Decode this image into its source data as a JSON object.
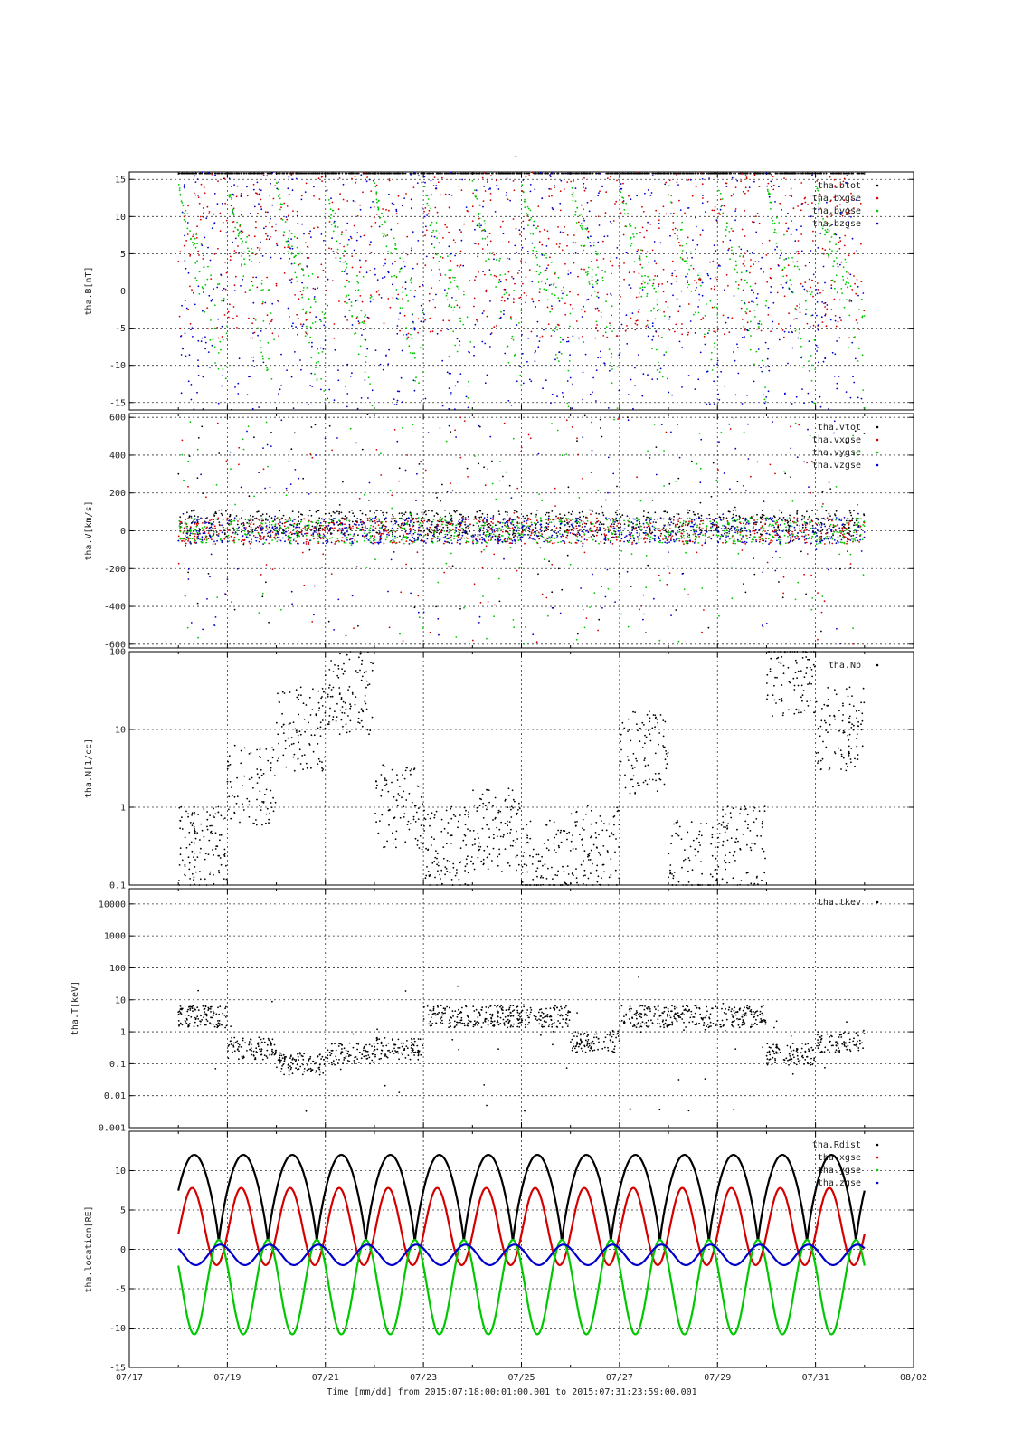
{
  "figure_title": "-",
  "colors": {
    "black": "#000000",
    "red": "#d40000",
    "green": "#00c800",
    "blue": "#0000cc"
  },
  "xaxis": {
    "label": "Time [mm/dd]  from 2015:07:18:00:01:00.001  to  2015:07:31:23:59:00.001",
    "range": [
      "07/17",
      "08/02"
    ],
    "ticks": [
      "07/17",
      "07/19",
      "07/21",
      "07/23",
      "07/25",
      "07/27",
      "07/29",
      "07/31",
      "08/02"
    ],
    "data_start_day": 1.0,
    "data_end_day": 15.0
  },
  "chart_data": [
    {
      "type": "scatter",
      "ylabel": "tha.B[nT]",
      "ylim": [
        -16,
        16
      ],
      "yticks": [
        -15,
        -10,
        -5,
        0,
        5,
        10,
        15
      ],
      "ytick_labels": [
        "-15",
        "-10",
        "-5",
        "0",
        "5",
        "10",
        "15"
      ],
      "yscale": "linear",
      "grid": true,
      "legend_placement": "top-right",
      "series": [
        {
          "name": "tha.btot",
          "color": "#000000"
        },
        {
          "name": "tha.bxgse",
          "color": "#d40000"
        },
        {
          "name": "tha.bygse",
          "color": "#00c800"
        },
        {
          "name": "tha.bzgse",
          "color": "#0000cc"
        }
      ]
    },
    {
      "type": "scatter",
      "ylabel": "tha.V[km/s]",
      "ylim": [
        -620,
        620
      ],
      "yticks": [
        -600,
        -400,
        -200,
        0,
        200,
        400,
        600
      ],
      "ytick_labels": [
        "-600",
        "-400",
        "-200",
        "0",
        "200",
        "400",
        "600"
      ],
      "yscale": "linear",
      "grid": true,
      "legend_placement": "top-right",
      "series": [
        {
          "name": "tha.vtot",
          "color": "#000000"
        },
        {
          "name": "tha.vxgse",
          "color": "#d40000"
        },
        {
          "name": "tha.vygse",
          "color": "#00c800"
        },
        {
          "name": "tha.vzgse",
          "color": "#0000cc"
        }
      ]
    },
    {
      "type": "scatter",
      "ylabel": "tha.N[1/cc]",
      "ylim": [
        0.1,
        100
      ],
      "yticks": [
        0.1,
        1,
        10,
        100
      ],
      "ytick_labels": [
        "0.1",
        "1",
        "10",
        "100"
      ],
      "yscale": "log",
      "grid": true,
      "legend_placement": "top-right",
      "series": [
        {
          "name": "tha.Np",
          "color": "#000000"
        }
      ]
    },
    {
      "type": "scatter",
      "ylabel": "tha.T[keV]",
      "ylim": [
        0.001,
        30000
      ],
      "yticks": [
        0.001,
        0.01,
        0.1,
        1,
        10,
        100,
        1000,
        10000
      ],
      "ytick_labels": [
        "0.001",
        "0.01",
        "0.1",
        "1",
        "10",
        "100",
        "1000",
        "10000"
      ],
      "yscale": "log",
      "grid": true,
      "legend_placement": "top-right",
      "series": [
        {
          "name": "tha.tkev",
          "color": "#000000"
        }
      ]
    },
    {
      "type": "line",
      "ylabel": "tha.location[RE]",
      "ylim": [
        -15,
        15
      ],
      "yticks": [
        -15,
        -10,
        -5,
        0,
        5,
        10
      ],
      "ytick_labels": [
        "-15",
        "-10",
        "-5",
        "0",
        "5",
        "10"
      ],
      "yscale": "linear",
      "grid": true,
      "legend_placement": "top-right",
      "orbit_period_days": 1.0,
      "series": [
        {
          "name": "tha.Rdist",
          "color": "#000000",
          "min": 0.8,
          "max": 12.0
        },
        {
          "name": "tha.xgse",
          "color": "#d40000",
          "min": -2.0,
          "max": 7.8
        },
        {
          "name": "tha.ygse",
          "color": "#00c800",
          "min": -10.8,
          "max": 1.2
        },
        {
          "name": "tha.zgse",
          "color": "#0000cc",
          "min": -2.0,
          "max": 0.6
        }
      ]
    }
  ]
}
